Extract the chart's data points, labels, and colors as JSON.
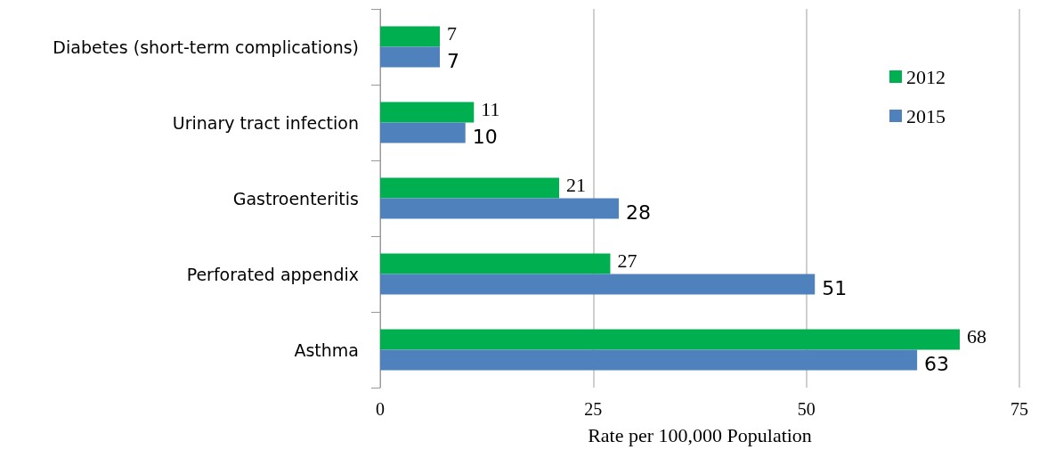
{
  "chart_data": {
    "type": "bar",
    "orientation": "horizontal",
    "xlabel": "Rate per 100,000 Population",
    "categories": [
      "Diabetes (short-term complications)",
      "Urinary tract infection",
      "Gastroenteritis",
      "Perforated appendix",
      "Asthma"
    ],
    "series": [
      {
        "name": "2012",
        "color": "#00b050",
        "values": [
          7,
          11,
          21,
          27,
          68
        ]
      },
      {
        "name": "2015",
        "color": "#4f81bd",
        "values": [
          7,
          10,
          28,
          51,
          63
        ]
      }
    ],
    "xlim": [
      0,
      75
    ],
    "xticks": [
      0,
      25,
      50,
      75
    ],
    "grid": "x",
    "legend": "top right",
    "data_labels": true
  }
}
